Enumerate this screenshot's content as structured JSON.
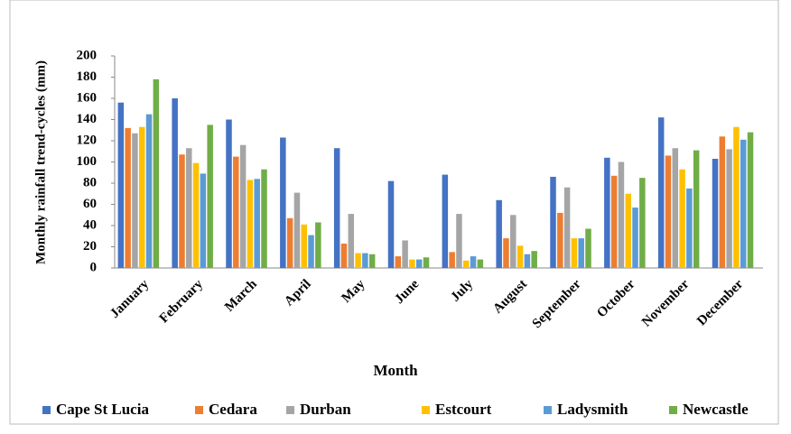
{
  "chart_data": {
    "type": "bar",
    "x_label": "Month",
    "y_label": "Monthly rainfall trend-cycles (mm)",
    "categories": [
      "January",
      "February",
      "March",
      "April",
      "May",
      "June",
      "July",
      "August",
      "September",
      "October",
      "November",
      "December"
    ],
    "series": [
      {
        "name": "Cape St Lucia",
        "color": "#4472c4",
        "values": [
          156,
          160,
          140,
          123,
          113,
          82,
          88,
          64,
          86,
          104,
          142,
          103
        ]
      },
      {
        "name": "Cedara",
        "color": "#ed7d31",
        "values": [
          132,
          107,
          105,
          47,
          23,
          11,
          15,
          28,
          52,
          87,
          106,
          124
        ]
      },
      {
        "name": "Durban",
        "color": "#a5a5a5",
        "values": [
          127,
          113,
          116,
          71,
          51,
          26,
          51,
          50,
          76,
          100,
          113,
          112
        ]
      },
      {
        "name": "Estcourt",
        "color": "#ffc000",
        "values": [
          133,
          99,
          83,
          41,
          14,
          8,
          7,
          21,
          28,
          70,
          93,
          133
        ]
      },
      {
        "name": "Ladysmith",
        "color": "#5b9bd5",
        "values": [
          145,
          89,
          84,
          31,
          14,
          8,
          11,
          13,
          28,
          57,
          75,
          121
        ]
      },
      {
        "name": "Newcastle",
        "color": "#70ad47",
        "values": [
          178,
          135,
          93,
          43,
          13,
          10,
          8,
          16,
          37,
          85,
          111,
          128
        ]
      }
    ],
    "ylim": [
      0,
      200
    ],
    "yticks": [
      0,
      20,
      40,
      60,
      80,
      100,
      120,
      140,
      160,
      180,
      200
    ],
    "legend": "bottom"
  }
}
